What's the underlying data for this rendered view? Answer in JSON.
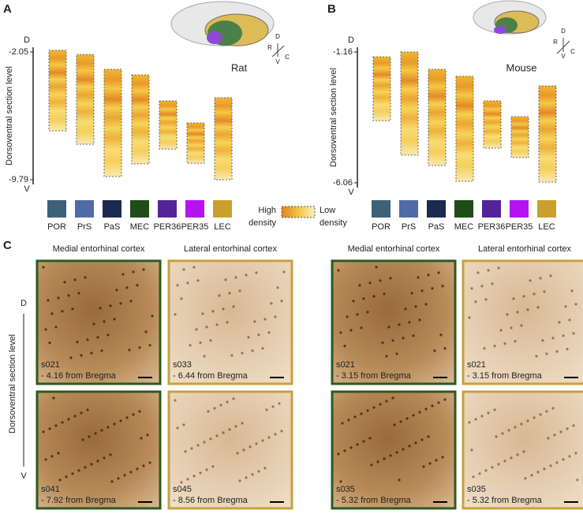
{
  "panels": [
    {
      "label": "A",
      "axis_label": "Dorsoventral section level",
      "top": "D",
      "bottom": "V",
      "ylim": [
        -2.05,
        -9.79
      ],
      "yticks": [
        -2.05,
        -9.79
      ],
      "species": "Rat",
      "orientation": [
        "D",
        "R",
        "C",
        "V"
      ],
      "regions": [
        {
          "name": "POR",
          "color": "#3d6277",
          "range": [
            -1.95,
            -6.83
          ]
        },
        {
          "name": "PrS",
          "color": "#4f6ca8",
          "range": [
            -2.2,
            -7.64
          ]
        },
        {
          "name": "PaS",
          "color": "#1c2a4f",
          "range": [
            -3.1,
            -9.6
          ]
        },
        {
          "name": "MEC",
          "color": "#1e4d17",
          "range": [
            -3.44,
            -8.83
          ]
        },
        {
          "name": "PER36",
          "color": "#54239a",
          "range": [
            -5.01,
            -7.93
          ]
        },
        {
          "name": "PER35",
          "color": "#b513f0",
          "range": [
            -6.35,
            -8.79
          ]
        },
        {
          "name": "LEC",
          "color": "#c9a02b",
          "range": [
            -4.82,
            -9.79
          ]
        }
      ]
    },
    {
      "label": "B",
      "axis_label": "Dorsoventral section level",
      "top": "D",
      "bottom": "V",
      "ylim": [
        -1.16,
        -6.06
      ],
      "yticks": [
        -1.16,
        -6.06
      ],
      "species": "Mouse",
      "orientation": [
        "D",
        "R",
        "C",
        "V"
      ],
      "regions": [
        {
          "name": "POR",
          "color": "#3d6277",
          "range": [
            -1.34,
            -3.73
          ]
        },
        {
          "name": "PrS",
          "color": "#4f6ca8",
          "range": [
            -1.16,
            -5.02
          ]
        },
        {
          "name": "PaS",
          "color": "#1c2a4f",
          "range": [
            -1.81,
            -5.41
          ]
        },
        {
          "name": "MEC",
          "color": "#1e4d17",
          "range": [
            -2.07,
            -6.0
          ]
        },
        {
          "name": "PER36",
          "color": "#54239a",
          "range": [
            -2.99,
            -4.76
          ]
        },
        {
          "name": "PER35",
          "color": "#b513f0",
          "range": [
            -3.58,
            -5.11
          ]
        },
        {
          "name": "LEC",
          "color": "#c9a02b",
          "range": [
            -2.43,
            -6.03
          ]
        }
      ]
    }
  ],
  "density_legend": {
    "high": [
      "High",
      "density"
    ],
    "low": [
      "Low",
      "density"
    ]
  },
  "panel_c": {
    "label": "C",
    "axis_label": "Dorsoventral section level",
    "top": "D",
    "bottom": "V",
    "columns": [
      {
        "title": "Medial entorhinal cortex",
        "color": "#2d5a1e"
      },
      {
        "title": "Lateral entorhinal cortex",
        "color": "#c9a040"
      },
      {
        "title": "Medial entorhinal cortex",
        "color": "#2d5a1e"
      },
      {
        "title": "Lateral entorhinal cortex",
        "color": "#c9a040"
      }
    ],
    "rows": [
      [
        {
          "section": "s021",
          "level": "- 4.16 from Bregma"
        },
        {
          "section": "s033",
          "level": "- 6.44 from Bregma"
        },
        {
          "section": "s021",
          "level": "- 3.15 from Bregma"
        },
        {
          "section": "s021",
          "level": "- 3.15 from Bregma"
        }
      ],
      [
        {
          "section": "s041",
          "level": "- 7.92 from Bregma"
        },
        {
          "section": "s045",
          "level": "- 8.56 from Bregma"
        },
        {
          "section": "s035",
          "level": "- 5.32 from Bregma"
        },
        {
          "section": "s035",
          "level": "- 5.32 from Bregma"
        }
      ]
    ]
  }
}
